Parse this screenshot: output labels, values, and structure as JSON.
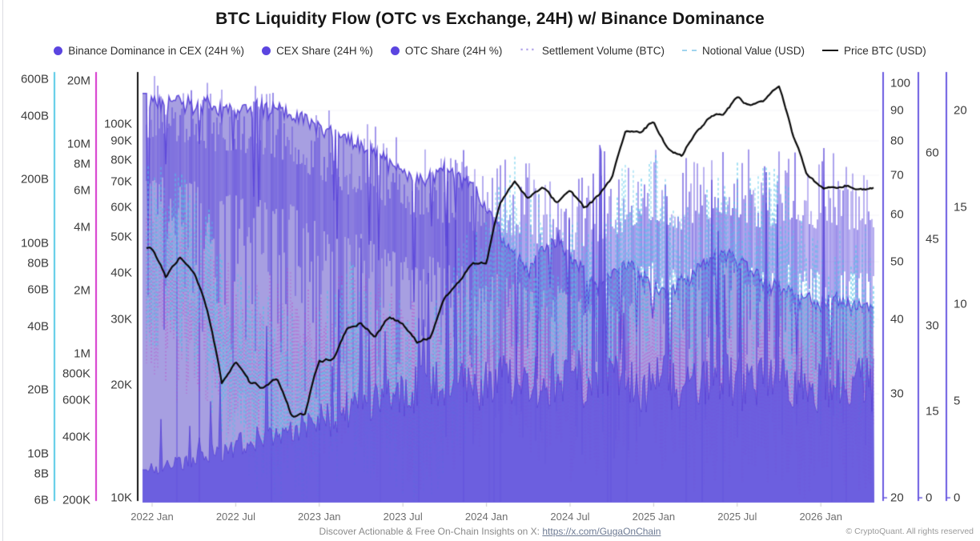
{
  "title": "BTC Liquidity Flow (OTC vs Exchange, 24H) w/ Binance Dominance",
  "legend": {
    "items": [
      {
        "label": "Binance Dominance in CEX (24H %)",
        "marker": "dot",
        "color": "#5b45e0"
      },
      {
        "label": "CEX Share (24H %)",
        "marker": "dot",
        "color": "#5b45e0"
      },
      {
        "label": "OTC Share (24H %)",
        "marker": "dot",
        "color": "#5b45e0"
      },
      {
        "label": "Settlement Volume (BTC)",
        "marker": "dotted",
        "color": "#b3a6ea"
      },
      {
        "label": "Notional Value (USD)",
        "marker": "dashed",
        "color": "#9fd4ee"
      },
      {
        "label": "Price BTC (USD)",
        "marker": "line",
        "color": "#111111"
      }
    ]
  },
  "footer": {
    "promo_prefix": "Discover Actionable & Free On-Chain Insights on X:",
    "promo_link": "https://x.com/GugaOnChain",
    "copyright": "© CryptoQuant. All rights reserved"
  },
  "axes": {
    "left": [
      {
        "id": "notional",
        "color": "#56c9e6",
        "scale": "log",
        "ticks": [
          {
            "v": 600000000000,
            "label": "600B"
          },
          {
            "v": 400000000000,
            "label": "400B"
          },
          {
            "v": 200000000000,
            "label": "200B"
          },
          {
            "v": 100000000000,
            "label": "100B"
          },
          {
            "v": 80000000000,
            "label": "80B"
          },
          {
            "v": 60000000000,
            "label": "60B"
          },
          {
            "v": 40000000000,
            "label": "40B"
          },
          {
            "v": 20000000000,
            "label": "20B"
          },
          {
            "v": 10000000000,
            "label": "10B"
          },
          {
            "v": 8000000000,
            "label": "8B"
          },
          {
            "v": 6000000000,
            "label": "6B"
          }
        ]
      },
      {
        "id": "settlement",
        "color": "#d433cc",
        "scale": "log",
        "ticks": [
          {
            "v": 20000000,
            "label": "20M"
          },
          {
            "v": 10000000,
            "label": "10M"
          },
          {
            "v": 8000000,
            "label": "8M"
          },
          {
            "v": 6000000,
            "label": "6M"
          },
          {
            "v": 4000000,
            "label": "4M"
          },
          {
            "v": 2000000,
            "label": "2M"
          },
          {
            "v": 1000000,
            "label": "1M"
          },
          {
            "v": 800000,
            "label": "800K"
          },
          {
            "v": 600000,
            "label": "600K"
          },
          {
            "v": 400000,
            "label": "400K"
          },
          {
            "v": 200000,
            "label": "200K"
          }
        ]
      },
      {
        "id": "price",
        "color": "#111111",
        "scale": "log",
        "ticks": [
          {
            "v": 100000,
            "label": "100K"
          },
          {
            "v": 90000,
            "label": "90K"
          },
          {
            "v": 80000,
            "label": "80K"
          },
          {
            "v": 70000,
            "label": "70K"
          },
          {
            "v": 60000,
            "label": "60K"
          },
          {
            "v": 50000,
            "label": "50K"
          },
          {
            "v": 40000,
            "label": "40K"
          },
          {
            "v": 30000,
            "label": "30K"
          },
          {
            "v": 20000,
            "label": "20K"
          },
          {
            "v": 10000,
            "label": "10K"
          }
        ]
      }
    ],
    "right": [
      {
        "id": "dominance",
        "color": "#6a5ae0",
        "scale": "log",
        "ticks": [
          {
            "v": 100,
            "label": "100"
          },
          {
            "v": 90,
            "label": "90"
          },
          {
            "v": 80,
            "label": "80"
          },
          {
            "v": 70,
            "label": "70"
          },
          {
            "v": 60,
            "label": "60"
          },
          {
            "v": 50,
            "label": "50"
          },
          {
            "v": 40,
            "label": "40"
          },
          {
            "v": 30,
            "label": "30"
          },
          {
            "v": 20,
            "label": "20"
          }
        ]
      },
      {
        "id": "cex",
        "color": "#6a5ae0",
        "scale": "linear",
        "ticks": [
          {
            "v": 60,
            "label": "60"
          },
          {
            "v": 45,
            "label": "45"
          },
          {
            "v": 30,
            "label": "30"
          },
          {
            "v": 15,
            "label": "15"
          },
          {
            "v": 0,
            "label": "0"
          }
        ]
      },
      {
        "id": "otc",
        "color": "#6a5ae0",
        "scale": "linear",
        "ticks": [
          {
            "v": 20,
            "label": "20"
          },
          {
            "v": 15,
            "label": "15"
          },
          {
            "v": 10,
            "label": "10"
          },
          {
            "v": 5,
            "label": "5"
          },
          {
            "v": 0,
            "label": "0"
          }
        ]
      }
    ],
    "x_ticks": [
      {
        "m": 0,
        "label": "2022 Jan"
      },
      {
        "m": 6,
        "label": "2022 Jul"
      },
      {
        "m": 12,
        "label": "2023 Jan"
      },
      {
        "m": 18,
        "label": "2023 Jul"
      },
      {
        "m": 24,
        "label": "2024 Jan"
      },
      {
        "m": 30,
        "label": "2024 Jul"
      },
      {
        "m": 36,
        "label": "2025 Jan"
      },
      {
        "m": 42,
        "label": "2025 Jul"
      },
      {
        "m": 48,
        "label": "2026 Jan"
      }
    ]
  },
  "chart_data": {
    "type": "mixed-time-series",
    "x_monthly": [
      "2022-01",
      "2022-02",
      "2022-03",
      "2022-04",
      "2022-05",
      "2022-06",
      "2022-07",
      "2022-08",
      "2022-09",
      "2022-10",
      "2022-11",
      "2022-12",
      "2023-01",
      "2023-02",
      "2023-03",
      "2023-04",
      "2023-05",
      "2023-06",
      "2023-07",
      "2023-08",
      "2023-09",
      "2023-10",
      "2023-11",
      "2023-12",
      "2024-01",
      "2024-02",
      "2024-03",
      "2024-04",
      "2024-05",
      "2024-06",
      "2024-07",
      "2024-08",
      "2024-09",
      "2024-10",
      "2024-11",
      "2024-12",
      "2025-01",
      "2025-02",
      "2025-03",
      "2025-04",
      "2025-05",
      "2025-06",
      "2025-07",
      "2025-08",
      "2025-09",
      "2025-10",
      "2025-11",
      "2025-12",
      "2026-01",
      "2026-02",
      "2026-03",
      "2026-04"
    ],
    "series": [
      {
        "name": "Binance Dominance in CEX (24H %)",
        "axis": "dominance",
        "style": "area",
        "color": "#a79fe1",
        "edge_color": "#5b45d8",
        "values": [
          95,
          94,
          95,
          93,
          94,
          92,
          91,
          92,
          93,
          92,
          90,
          89,
          86,
          84,
          82,
          80,
          78,
          74,
          72,
          70,
          71,
          73,
          71,
          69,
          62,
          57,
          52,
          50,
          53,
          56,
          52,
          49,
          46,
          48,
          51,
          49,
          46,
          45,
          47,
          49,
          51,
          53,
          51,
          49,
          47,
          46,
          45,
          44,
          43,
          44,
          43,
          43
        ]
      },
      {
        "name": "CEX Share (24H %)",
        "axis": "cex",
        "style": "spikes",
        "color": "#5f4bdc",
        "values": [
          60,
          61,
          59,
          60,
          58,
          57,
          58,
          56,
          57,
          55,
          56,
          54,
          53,
          52,
          50,
          51,
          49,
          48,
          47,
          46,
          47,
          45,
          46,
          44,
          43,
          44,
          42,
          43,
          41,
          42,
          40,
          41,
          42,
          43,
          44,
          45,
          46,
          45,
          44,
          45,
          46,
          47,
          46,
          45,
          44,
          45,
          46,
          45,
          44,
          45,
          44,
          44
        ]
      },
      {
        "name": "OTC Share (24H %)",
        "axis": "otc",
        "style": "area",
        "color": "#6456de",
        "edge_color": "#5742d6",
        "values": [
          1.5,
          1.6,
          1.8,
          2,
          2.2,
          2.5,
          2.8,
          3,
          3.2,
          3,
          3.5,
          3.8,
          4,
          4.2,
          4.5,
          5,
          5.2,
          5.5,
          5.3,
          5.6,
          5.8,
          5.5,
          5.7,
          6,
          5.8,
          6,
          6.2,
          6,
          5.8,
          6.1,
          6.3,
          6,
          5.9,
          6.1,
          6,
          5.8,
          5.9,
          6,
          5.8,
          5.7,
          5.9,
          6,
          5.8,
          5.9,
          6,
          5.8,
          5.7,
          5.9,
          5.8,
          5.9,
          5.8,
          5.8
        ]
      },
      {
        "name": "Settlement Volume (BTC)",
        "axis": "settlement",
        "style": "dotted",
        "color": "#c43cc6",
        "values": [
          2000000,
          1800000,
          1600000,
          1500000,
          1400000,
          1200000,
          1000000,
          900000,
          850000,
          800000,
          900000,
          700000,
          800000,
          900000,
          1000000,
          850000,
          700000,
          650000,
          600000,
          550000,
          600000,
          700000,
          800000,
          900000,
          950000,
          1100000,
          1200000,
          900000,
          800000,
          750000,
          700000,
          650000,
          600000,
          700000,
          900000,
          800000,
          850000,
          700000,
          650000,
          600000,
          650000,
          700000,
          650000,
          600000,
          650000,
          700000,
          600000,
          550000,
          600000,
          650000,
          600000,
          600000
        ]
      },
      {
        "name": "Notional Value (USD)",
        "axis": "notional",
        "style": "dashed",
        "color": "#4cc3e8",
        "values": [
          90000000000,
          80000000000,
          70000000000,
          60000000000,
          50000000000,
          30000000000,
          25000000000,
          20000000000,
          18000000000,
          17000000000,
          16000000000,
          12000000000,
          18000000000,
          20000000000,
          28000000000,
          25000000000,
          19000000000,
          20000000000,
          18000000000,
          14000000000,
          16000000000,
          24000000000,
          30000000000,
          38000000000,
          40000000000,
          65000000000,
          85000000000,
          57000000000,
          54000000000,
          46000000000,
          46000000000,
          38000000000,
          38000000000,
          49000000000,
          86000000000,
          75000000000,
          87000000000,
          60000000000,
          54000000000,
          57000000000,
          68000000000,
          75000000000,
          77000000000,
          66000000000,
          74000000000,
          88000000000,
          54000000000,
          39000000000,
          40000000000,
          44000000000,
          40000000000,
          40000000000
        ]
      },
      {
        "name": "Price BTC (USD)",
        "axis": "price",
        "style": "line",
        "color": "#0b0b0b",
        "values": [
          46500,
          38500,
          44000,
          39500,
          31000,
          19800,
          23200,
          20000,
          19500,
          20500,
          16500,
          16600,
          23100,
          23500,
          28200,
          29300,
          27100,
          30500,
          29300,
          26100,
          26900,
          34500,
          37700,
          42300,
          42600,
          61500,
          70800,
          63800,
          67500,
          61500,
          66100,
          59000,
          63300,
          70000,
          96500,
          93500,
          102000,
          86000,
          83000,
          95000,
          104000,
          107000,
          118000,
          110000,
          114000,
          125000,
          92000,
          72000,
          67000,
          66000,
          68000,
          67000
        ]
      }
    ]
  }
}
